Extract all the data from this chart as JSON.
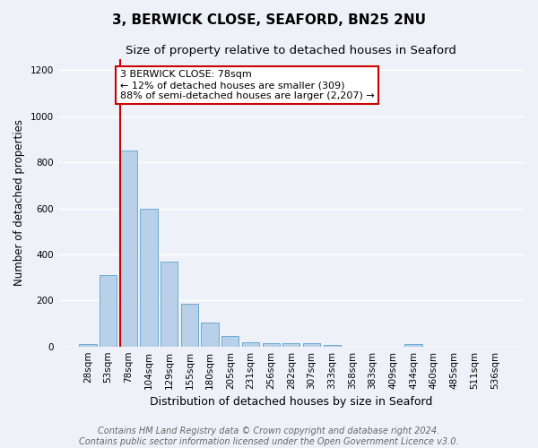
{
  "title": "3, BERWICK CLOSE, SEAFORD, BN25 2NU",
  "subtitle": "Size of property relative to detached houses in Seaford",
  "xlabel": "Distribution of detached houses by size in Seaford",
  "ylabel": "Number of detached properties",
  "categories": [
    "28sqm",
    "53sqm",
    "78sqm",
    "104sqm",
    "129sqm",
    "155sqm",
    "180sqm",
    "205sqm",
    "231sqm",
    "256sqm",
    "282sqm",
    "307sqm",
    "333sqm",
    "358sqm",
    "383sqm",
    "409sqm",
    "434sqm",
    "460sqm",
    "485sqm",
    "511sqm",
    "536sqm"
  ],
  "values": [
    10,
    310,
    850,
    600,
    370,
    185,
    105,
    45,
    20,
    15,
    15,
    15,
    8,
    0,
    0,
    0,
    10,
    0,
    0,
    0,
    0
  ],
  "bar_color": "#b8d0e8",
  "bar_edge_color": "#6aaad4",
  "highlight_line_index": 2,
  "highlight_line_color": "#cc0000",
  "ylim": [
    0,
    1250
  ],
  "yticks": [
    0,
    200,
    400,
    600,
    800,
    1000,
    1200
  ],
  "annotation_text": "3 BERWICK CLOSE: 78sqm\n← 12% of detached houses are smaller (309)\n88% of semi-detached houses are larger (2,207) →",
  "annotation_box_facecolor": "#ffffff",
  "annotation_box_edgecolor": "#cc0000",
  "background_color": "#eef2f8",
  "grid_color": "#ffffff",
  "title_fontsize": 11,
  "subtitle_fontsize": 9.5,
  "xlabel_fontsize": 9,
  "ylabel_fontsize": 8.5,
  "tick_fontsize": 7.5,
  "annotation_fontsize": 8,
  "footer_fontsize": 7,
  "footer_line1": "Contains HM Land Registry data © Crown copyright and database right 2024.",
  "footer_line2": "Contains public sector information licensed under the Open Government Licence v3.0."
}
